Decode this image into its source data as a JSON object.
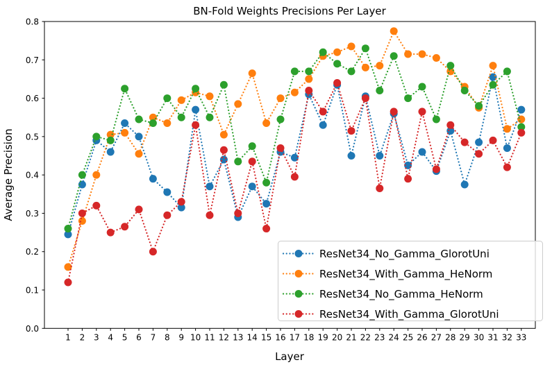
{
  "chart_data": {
    "type": "line",
    "title": "BN-Fold Weights Precisions Per Layer",
    "xlabel": "Layer",
    "ylabel": "Average Precision",
    "linestyle": "dotted",
    "marker": "circle",
    "grid": false,
    "legend_position": "lower right",
    "ylim": [
      0.0,
      0.8
    ],
    "ytick_labels": [
      "0.0",
      "0.1",
      "0.2",
      "0.3",
      "0.4",
      "0.5",
      "0.6",
      "0.7",
      "0.8"
    ],
    "x": [
      1,
      2,
      3,
      4,
      5,
      6,
      7,
      8,
      9,
      10,
      11,
      12,
      13,
      14,
      15,
      16,
      17,
      18,
      19,
      20,
      21,
      22,
      23,
      24,
      25,
      26,
      27,
      28,
      29,
      30,
      31,
      32,
      33
    ],
    "series": [
      {
        "name": "ResNet34_No_Gamma_GlorotUni",
        "color": "#1f77b4",
        "values": [
          0.245,
          0.375,
          0.49,
          0.46,
          0.535,
          0.5,
          0.39,
          0.355,
          0.315,
          0.57,
          0.37,
          0.44,
          0.29,
          0.37,
          0.325,
          0.46,
          0.445,
          0.61,
          0.53,
          0.635,
          0.45,
          0.605,
          0.45,
          0.56,
          0.425,
          0.46,
          0.41,
          0.515,
          0.375,
          0.485,
          0.655,
          0.47,
          0.57
        ]
      },
      {
        "name": "ResNet34_With_Gamma_HeNorm",
        "color": "#ff7f0e",
        "values": [
          0.16,
          0.28,
          0.4,
          0.505,
          0.51,
          0.455,
          0.55,
          0.535,
          0.595,
          0.615,
          0.605,
          0.505,
          0.585,
          0.665,
          0.535,
          0.6,
          0.615,
          0.65,
          0.71,
          0.72,
          0.735,
          0.68,
          0.685,
          0.775,
          0.715,
          0.715,
          0.705,
          0.67,
          0.63,
          0.575,
          0.685,
          0.52,
          0.545
        ]
      },
      {
        "name": "ResNet34_No_Gamma_HeNorm",
        "color": "#2ca02c",
        "values": [
          0.26,
          0.4,
          0.5,
          0.49,
          0.625,
          0.545,
          0.535,
          0.6,
          0.55,
          0.625,
          0.55,
          0.635,
          0.435,
          0.475,
          0.38,
          0.545,
          0.67,
          0.67,
          0.72,
          0.69,
          0.67,
          0.73,
          0.62,
          0.71,
          0.6,
          0.63,
          0.545,
          0.685,
          0.62,
          0.58,
          0.635,
          0.67,
          0.525
        ]
      },
      {
        "name": "ResNet34_With_Gamma_GlorotUni",
        "color": "#d62728",
        "values": [
          0.12,
          0.3,
          0.32,
          0.25,
          0.265,
          0.31,
          0.2,
          0.295,
          0.33,
          0.53,
          0.295,
          0.465,
          0.3,
          0.435,
          0.26,
          0.47,
          0.395,
          0.62,
          0.565,
          0.64,
          0.515,
          0.6,
          0.365,
          0.565,
          0.39,
          0.565,
          0.415,
          0.53,
          0.485,
          0.455,
          0.49,
          0.42,
          0.51
        ]
      }
    ]
  }
}
